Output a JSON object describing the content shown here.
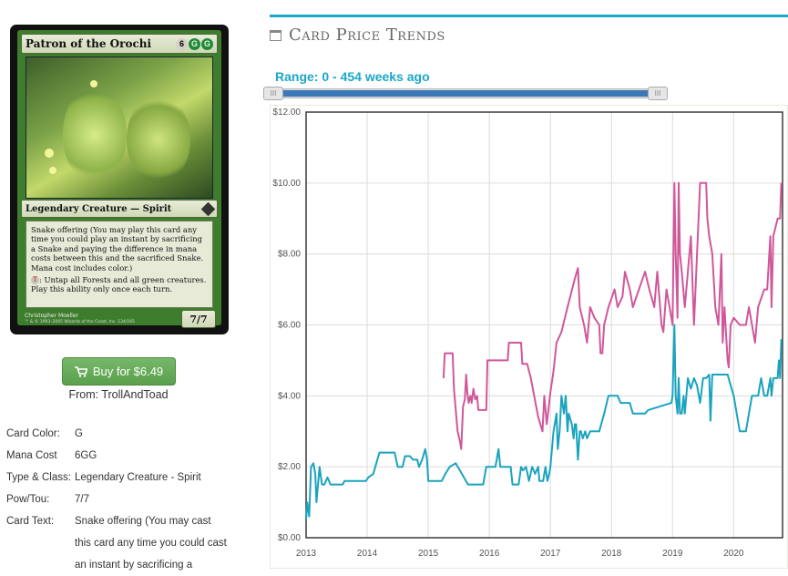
{
  "card": {
    "name": "Patron of the Orochi",
    "mana_symbols": [
      "6",
      "G",
      "G"
    ],
    "type_line": "Legendary Creature — Spirit",
    "rules_text_1": "Snake offering (You may play this card any time you could play an instant by sacrificing a Snake and paying the difference in mana costs between this and the sacrificed Snake. Mana cost includes color.)",
    "rules_text_2": ": Untap all Forests and all green creatures. Play this ability only once each turn.",
    "tap_symbol": "T",
    "power_toughness": "7/7",
    "artist": "Christopher Moeller",
    "copyright": "™ & © 1993–2005 Wizards of the Coast, Inc. 134/165"
  },
  "buy": {
    "label": "Buy for $6.49",
    "icon": "cart-icon",
    "from": "From: TrollAndToad"
  },
  "info": [
    {
      "label": "Card Color:",
      "value": "G"
    },
    {
      "label": "Mana Cost",
      "value": "6GG"
    },
    {
      "label": "Type & Class:",
      "value": "Legendary Creature - Spirit"
    },
    {
      "label": "Pow/Tou:",
      "value": "7/7"
    },
    {
      "label": "Card Text:",
      "value": "Snake offering (You may cast this card any time you could cast an instant by sacrificing a"
    }
  ],
  "section": {
    "title": "Card Price Trends",
    "icon": "calendar-icon"
  },
  "range": {
    "label": "Range: 0 - 454 weeks ago",
    "handle_glyph": "III",
    "start_fraction": 0,
    "end_fraction": 1
  },
  "colors": {
    "accent": "#1ba7c6",
    "foil_series": "#d0579a",
    "regular_series": "#1aa3be",
    "buy_button": "#5fa553"
  },
  "chart_data": {
    "type": "line",
    "x_unit": "year",
    "xlim": [
      2013.0,
      2020.8
    ],
    "ylim": [
      0,
      12
    ],
    "x_ticks": [
      "2013",
      "2014",
      "2015",
      "2016",
      "2017",
      "2018",
      "2019",
      "2020"
    ],
    "y_ticks": [
      "$0.00",
      "$2.00",
      "$4.00",
      "$6.00",
      "$8.00",
      "$10.00",
      "$12.00"
    ],
    "grid": true,
    "series": [
      {
        "color": "#d0579a",
        "points": [
          [
            2015.25,
            4.5
          ],
          [
            2015.27,
            5.2
          ],
          [
            2015.4,
            5.2
          ],
          [
            2015.42,
            4.2
          ],
          [
            2015.48,
            3.0
          ],
          [
            2015.52,
            2.7
          ],
          [
            2015.54,
            2.5
          ],
          [
            2015.57,
            3.7
          ],
          [
            2015.6,
            3.9
          ],
          [
            2015.62,
            4.6
          ],
          [
            2015.64,
            4.1
          ],
          [
            2015.66,
            3.8
          ],
          [
            2015.69,
            4.0
          ],
          [
            2015.71,
            3.8
          ],
          [
            2015.74,
            4.2
          ],
          [
            2015.77,
            3.9
          ],
          [
            2015.8,
            4.0
          ],
          [
            2015.82,
            3.6
          ],
          [
            2015.95,
            3.6
          ],
          [
            2015.97,
            5.0
          ],
          [
            2016.3,
            5.0
          ],
          [
            2016.32,
            5.5
          ],
          [
            2016.52,
            5.5
          ],
          [
            2016.54,
            4.9
          ],
          [
            2016.62,
            4.9
          ],
          [
            2016.68,
            4.5
          ],
          [
            2016.8,
            3.4
          ],
          [
            2016.87,
            3.0
          ],
          [
            2016.9,
            4.0
          ],
          [
            2016.94,
            3.2
          ],
          [
            2017.0,
            4.1
          ],
          [
            2017.05,
            4.7
          ],
          [
            2017.1,
            5.5
          ],
          [
            2017.18,
            5.8
          ],
          [
            2017.28,
            6.5
          ],
          [
            2017.4,
            7.3
          ],
          [
            2017.45,
            7.6
          ],
          [
            2017.48,
            6.5
          ],
          [
            2017.55,
            6.0
          ],
          [
            2017.6,
            5.5
          ],
          [
            2017.65,
            6.5
          ],
          [
            2017.72,
            6.2
          ],
          [
            2017.8,
            6.0
          ],
          [
            2017.82,
            5.2
          ],
          [
            2017.85,
            5.2
          ],
          [
            2017.88,
            6.0
          ],
          [
            2017.95,
            6.5
          ],
          [
            2018.05,
            7.0
          ],
          [
            2018.1,
            6.5
          ],
          [
            2018.18,
            6.8
          ],
          [
            2018.22,
            7.5
          ],
          [
            2018.3,
            7.0
          ],
          [
            2018.35,
            6.5
          ],
          [
            2018.45,
            7.0
          ],
          [
            2018.55,
            7.5
          ],
          [
            2018.62,
            7.0
          ],
          [
            2018.7,
            6.5
          ],
          [
            2018.75,
            7.5
          ],
          [
            2018.82,
            6.0
          ],
          [
            2018.85,
            5.8
          ],
          [
            2018.9,
            7.0
          ],
          [
            2018.95,
            6.5
          ],
          [
            2019.0,
            6.0
          ],
          [
            2019.03,
            10.0
          ],
          [
            2019.05,
            8.0
          ],
          [
            2019.08,
            6.2
          ],
          [
            2019.1,
            10.0
          ],
          [
            2019.12,
            8.0
          ],
          [
            2019.15,
            7.5
          ],
          [
            2019.2,
            6.5
          ],
          [
            2019.25,
            7.5
          ],
          [
            2019.3,
            8.5
          ],
          [
            2019.35,
            6.0
          ],
          [
            2019.45,
            10.0
          ],
          [
            2019.55,
            10.0
          ],
          [
            2019.57,
            9.0
          ],
          [
            2019.6,
            8.5
          ],
          [
            2019.65,
            8.0
          ],
          [
            2019.7,
            6.5
          ],
          [
            2019.75,
            6.0
          ],
          [
            2019.8,
            8.0
          ],
          [
            2019.82,
            5.5
          ],
          [
            2019.85,
            6.5
          ],
          [
            2019.9,
            5.0
          ],
          [
            2019.92,
            4.8
          ],
          [
            2019.95,
            6.0
          ],
          [
            2020.0,
            6.2
          ],
          [
            2020.1,
            6.0
          ],
          [
            2020.2,
            6.0
          ],
          [
            2020.25,
            6.5
          ],
          [
            2020.3,
            6.0
          ],
          [
            2020.35,
            5.5
          ],
          [
            2020.4,
            6.5
          ],
          [
            2020.5,
            7.0
          ],
          [
            2020.55,
            7.0
          ],
          [
            2020.6,
            8.5
          ],
          [
            2020.62,
            6.5
          ],
          [
            2020.65,
            8.5
          ],
          [
            2020.72,
            9.0
          ],
          [
            2020.76,
            9.0
          ],
          [
            2020.78,
            10.0
          ]
        ]
      },
      {
        "color": "#1aa3be",
        "points": [
          [
            2013.0,
            0.5
          ],
          [
            2013.02,
            1.0
          ],
          [
            2013.05,
            0.6
          ],
          [
            2013.08,
            2.0
          ],
          [
            2013.12,
            2.1
          ],
          [
            2013.15,
            1.8
          ],
          [
            2013.17,
            1.0
          ],
          [
            2013.22,
            2.0
          ],
          [
            2013.26,
            1.5
          ],
          [
            2013.3,
            1.5
          ],
          [
            2013.35,
            1.7
          ],
          [
            2013.4,
            1.5
          ],
          [
            2013.6,
            1.5
          ],
          [
            2013.63,
            1.6
          ],
          [
            2013.98,
            1.6
          ],
          [
            2014.02,
            1.7
          ],
          [
            2014.1,
            1.8
          ],
          [
            2014.15,
            2.1
          ],
          [
            2014.2,
            2.4
          ],
          [
            2014.45,
            2.4
          ],
          [
            2014.5,
            2.0
          ],
          [
            2014.58,
            2.0
          ],
          [
            2014.62,
            2.3
          ],
          [
            2014.7,
            2.3
          ],
          [
            2014.75,
            2.2
          ],
          [
            2014.82,
            2.2
          ],
          [
            2014.85,
            2.0
          ],
          [
            2014.9,
            2.2
          ],
          [
            2014.95,
            2.5
          ],
          [
            2014.98,
            2.2
          ],
          [
            2015.0,
            1.6
          ],
          [
            2015.15,
            1.6
          ],
          [
            2015.22,
            1.6
          ],
          [
            2015.28,
            1.8
          ],
          [
            2015.35,
            2.0
          ],
          [
            2015.45,
            2.1
          ],
          [
            2015.55,
            1.8
          ],
          [
            2015.65,
            1.5
          ],
          [
            2015.78,
            1.5
          ],
          [
            2015.9,
            1.5
          ],
          [
            2015.95,
            2.0
          ],
          [
            2016.1,
            2.0
          ],
          [
            2016.15,
            2.5
          ],
          [
            2016.18,
            2.0
          ],
          [
            2016.35,
            2.0
          ],
          [
            2016.38,
            1.5
          ],
          [
            2016.48,
            1.5
          ],
          [
            2016.52,
            2.0
          ],
          [
            2016.55,
            1.9
          ],
          [
            2016.6,
            2.0
          ],
          [
            2016.65,
            1.6
          ],
          [
            2016.7,
            2.0
          ],
          [
            2016.75,
            1.8
          ],
          [
            2016.8,
            2.0
          ],
          [
            2016.82,
            1.6
          ],
          [
            2016.88,
            1.6
          ],
          [
            2016.92,
            2.0
          ],
          [
            2016.95,
            1.6
          ],
          [
            2016.98,
            1.8
          ],
          [
            2017.0,
            2.0
          ],
          [
            2017.05,
            3.0
          ],
          [
            2017.1,
            3.5
          ],
          [
            2017.12,
            2.5
          ],
          [
            2017.15,
            3.0
          ],
          [
            2017.18,
            4.0
          ],
          [
            2017.22,
            3.5
          ],
          [
            2017.25,
            4.0
          ],
          [
            2017.28,
            3.0
          ],
          [
            2017.3,
            3.5
          ],
          [
            2017.35,
            3.2
          ],
          [
            2017.38,
            2.8
          ],
          [
            2017.4,
            3.2
          ],
          [
            2017.42,
            3.2
          ],
          [
            2017.45,
            2.2
          ],
          [
            2017.48,
            3.0
          ],
          [
            2017.5,
            3.0
          ],
          [
            2017.53,
            2.8
          ],
          [
            2017.57,
            3.0
          ],
          [
            2017.6,
            2.8
          ],
          [
            2017.65,
            3.0
          ],
          [
            2017.8,
            3.0
          ],
          [
            2017.88,
            3.5
          ],
          [
            2017.95,
            4.0
          ],
          [
            2018.1,
            4.0
          ],
          [
            2018.15,
            3.8
          ],
          [
            2018.3,
            3.8
          ],
          [
            2018.35,
            3.5
          ],
          [
            2018.55,
            3.5
          ],
          [
            2018.6,
            3.6
          ],
          [
            2018.98,
            3.8
          ],
          [
            2019.0,
            4.0
          ],
          [
            2019.03,
            6.0
          ],
          [
            2019.05,
            4.0
          ],
          [
            2019.08,
            3.5
          ],
          [
            2019.1,
            4.5
          ],
          [
            2019.12,
            3.5
          ],
          [
            2019.15,
            3.5
          ],
          [
            2019.18,
            4.0
          ],
          [
            2019.2,
            3.5
          ],
          [
            2019.25,
            4.5
          ],
          [
            2019.3,
            4.2
          ],
          [
            2019.35,
            4.5
          ],
          [
            2019.4,
            4.3
          ],
          [
            2019.45,
            3.8
          ],
          [
            2019.5,
            4.5
          ],
          [
            2019.55,
            4.5
          ],
          [
            2019.6,
            4.6
          ],
          [
            2019.62,
            3.3
          ],
          [
            2019.65,
            4.6
          ],
          [
            2019.75,
            4.6
          ],
          [
            2019.85,
            4.6
          ],
          [
            2019.9,
            4.6
          ],
          [
            2019.95,
            4.3
          ],
          [
            2020.0,
            4.0
          ],
          [
            2020.05,
            3.5
          ],
          [
            2020.1,
            3.0
          ],
          [
            2020.2,
            3.0
          ],
          [
            2020.25,
            3.5
          ],
          [
            2020.3,
            4.0
          ],
          [
            2020.4,
            4.0
          ],
          [
            2020.45,
            4.5
          ],
          [
            2020.5,
            4.0
          ],
          [
            2020.55,
            4.0
          ],
          [
            2020.6,
            4.5
          ],
          [
            2020.62,
            4.0
          ],
          [
            2020.65,
            4.5
          ],
          [
            2020.72,
            4.5
          ],
          [
            2020.74,
            5.0
          ],
          [
            2020.76,
            4.5
          ],
          [
            2020.78,
            5.6
          ]
        ]
      }
    ]
  }
}
